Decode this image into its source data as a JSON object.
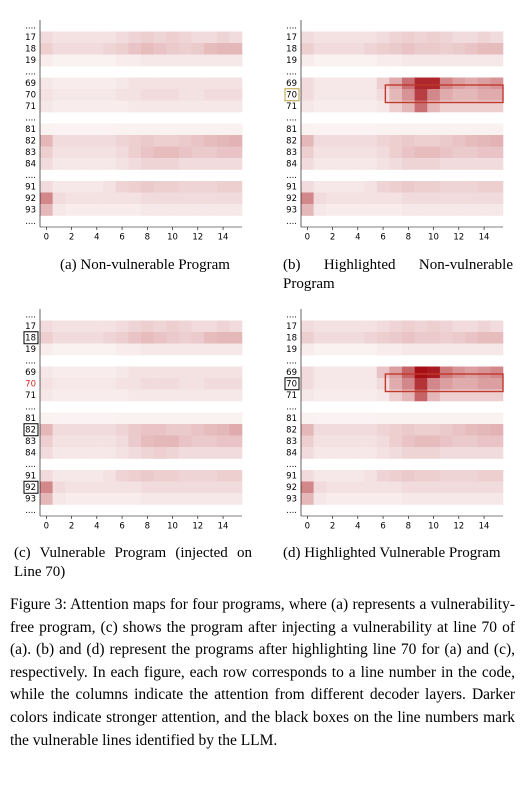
{
  "row_labels": [
    "....",
    "17",
    "18",
    "19",
    "....",
    "69",
    "70",
    "71",
    "....",
    "81",
    "82",
    "83",
    "84",
    "....",
    "91",
    "92",
    "93",
    "...."
  ],
  "xticks": [
    0,
    2,
    4,
    6,
    8,
    10,
    12,
    14
  ],
  "vmin": 0,
  "vmax": 1,
  "color_low": "#ffffff",
  "color_high": "#a50f15",
  "figures": [
    {
      "caption": "(a) Non-vulnerable Program",
      "boxed_labels": [],
      "label_box_color": "#000000",
      "red_labels": [],
      "highlight": null,
      "values": [
        null,
        [
          0.15,
          0.12,
          0.12,
          0.12,
          0.12,
          0.12,
          0.15,
          0.18,
          0.2,
          0.18,
          0.2,
          0.18,
          0.15,
          0.15,
          0.18,
          0.15
        ],
        [
          0.2,
          0.15,
          0.15,
          0.15,
          0.15,
          0.18,
          0.2,
          0.25,
          0.28,
          0.25,
          0.22,
          0.2,
          0.22,
          0.28,
          0.3,
          0.3
        ],
        [
          0.08,
          0.06,
          0.06,
          0.06,
          0.06,
          0.06,
          0.08,
          0.08,
          0.1,
          0.1,
          0.1,
          0.1,
          0.1,
          0.1,
          0.1,
          0.1
        ],
        null,
        [
          0.1,
          0.08,
          0.08,
          0.08,
          0.08,
          0.08,
          0.1,
          0.12,
          0.12,
          0.12,
          0.12,
          0.12,
          0.12,
          0.12,
          0.12,
          0.12
        ],
        [
          0.12,
          0.1,
          0.1,
          0.1,
          0.1,
          0.1,
          0.12,
          0.12,
          0.15,
          0.15,
          0.15,
          0.12,
          0.12,
          0.15,
          0.15,
          0.15
        ],
        [
          0.1,
          0.08,
          0.08,
          0.08,
          0.08,
          0.08,
          0.08,
          0.1,
          0.1,
          0.1,
          0.1,
          0.1,
          0.1,
          0.1,
          0.1,
          0.1
        ],
        null,
        [
          0.06,
          0.05,
          0.05,
          0.05,
          0.05,
          0.05,
          0.06,
          0.06,
          0.06,
          0.06,
          0.06,
          0.06,
          0.06,
          0.06,
          0.06,
          0.06
        ],
        [
          0.3,
          0.15,
          0.15,
          0.15,
          0.15,
          0.15,
          0.18,
          0.2,
          0.22,
          0.2,
          0.2,
          0.22,
          0.25,
          0.28,
          0.3,
          0.32
        ],
        [
          0.2,
          0.12,
          0.12,
          0.12,
          0.12,
          0.12,
          0.15,
          0.2,
          0.25,
          0.28,
          0.28,
          0.25,
          0.22,
          0.22,
          0.25,
          0.25
        ],
        [
          0.15,
          0.1,
          0.1,
          0.1,
          0.1,
          0.1,
          0.12,
          0.15,
          0.18,
          0.18,
          0.18,
          0.15,
          0.15,
          0.15,
          0.15,
          0.15
        ],
        null,
        [
          0.15,
          0.1,
          0.1,
          0.1,
          0.1,
          0.12,
          0.18,
          0.2,
          0.22,
          0.2,
          0.2,
          0.18,
          0.18,
          0.18,
          0.2,
          0.2
        ],
        [
          0.5,
          0.15,
          0.12,
          0.12,
          0.12,
          0.12,
          0.12,
          0.12,
          0.15,
          0.15,
          0.15,
          0.15,
          0.15,
          0.15,
          0.15,
          0.15
        ],
        [
          0.3,
          0.1,
          0.08,
          0.08,
          0.08,
          0.08,
          0.08,
          0.08,
          0.1,
          0.1,
          0.1,
          0.1,
          0.1,
          0.1,
          0.1,
          0.1
        ],
        null
      ]
    },
    {
      "caption": "(b) Highlighted Non-vulnerable Program",
      "boxed_labels": [
        6
      ],
      "label_box_color": "#b8a040",
      "red_labels": [],
      "highlight": {
        "row": 6,
        "from": 7,
        "to": 15,
        "color": "#c0392b"
      },
      "values": [
        null,
        [
          0.15,
          0.12,
          0.12,
          0.12,
          0.12,
          0.12,
          0.15,
          0.18,
          0.2,
          0.18,
          0.2,
          0.18,
          0.15,
          0.15,
          0.18,
          0.15
        ],
        [
          0.2,
          0.15,
          0.15,
          0.15,
          0.15,
          0.18,
          0.2,
          0.22,
          0.25,
          0.22,
          0.22,
          0.2,
          0.22,
          0.25,
          0.28,
          0.28
        ],
        [
          0.08,
          0.06,
          0.06,
          0.06,
          0.06,
          0.06,
          0.08,
          0.08,
          0.1,
          0.1,
          0.1,
          0.1,
          0.1,
          0.1,
          0.1,
          0.1
        ],
        null,
        [
          0.15,
          0.1,
          0.1,
          0.1,
          0.1,
          0.1,
          0.2,
          0.35,
          0.6,
          0.9,
          0.9,
          0.5,
          0.4,
          0.35,
          0.4,
          0.45
        ],
        [
          0.15,
          0.1,
          0.1,
          0.1,
          0.1,
          0.1,
          0.15,
          0.3,
          0.45,
          0.8,
          0.5,
          0.35,
          0.3,
          0.3,
          0.35,
          0.35
        ],
        [
          0.1,
          0.08,
          0.08,
          0.08,
          0.08,
          0.08,
          0.1,
          0.2,
          0.3,
          0.6,
          0.3,
          0.2,
          0.2,
          0.2,
          0.2,
          0.2
        ],
        null,
        [
          0.06,
          0.05,
          0.05,
          0.05,
          0.05,
          0.05,
          0.06,
          0.06,
          0.06,
          0.06,
          0.06,
          0.06,
          0.06,
          0.06,
          0.06,
          0.06
        ],
        [
          0.3,
          0.15,
          0.15,
          0.15,
          0.15,
          0.15,
          0.18,
          0.2,
          0.22,
          0.2,
          0.2,
          0.22,
          0.25,
          0.28,
          0.3,
          0.32
        ],
        [
          0.2,
          0.12,
          0.12,
          0.12,
          0.12,
          0.12,
          0.15,
          0.2,
          0.25,
          0.28,
          0.28,
          0.25,
          0.22,
          0.22,
          0.25,
          0.25
        ],
        [
          0.15,
          0.1,
          0.1,
          0.1,
          0.1,
          0.1,
          0.12,
          0.15,
          0.18,
          0.18,
          0.18,
          0.15,
          0.15,
          0.15,
          0.15,
          0.15
        ],
        null,
        [
          0.15,
          0.1,
          0.1,
          0.1,
          0.1,
          0.12,
          0.18,
          0.2,
          0.22,
          0.2,
          0.2,
          0.18,
          0.18,
          0.18,
          0.2,
          0.2
        ],
        [
          0.5,
          0.15,
          0.12,
          0.12,
          0.12,
          0.12,
          0.12,
          0.12,
          0.15,
          0.15,
          0.15,
          0.15,
          0.15,
          0.15,
          0.15,
          0.15
        ],
        [
          0.3,
          0.1,
          0.08,
          0.08,
          0.08,
          0.08,
          0.08,
          0.08,
          0.1,
          0.1,
          0.1,
          0.1,
          0.1,
          0.1,
          0.1,
          0.1
        ],
        null
      ]
    },
    {
      "caption": "(c) Vulnerable Program (injected on Line 70)",
      "boxed_labels": [
        2,
        10,
        15
      ],
      "label_box_color": "#000000",
      "red_labels": [
        6
      ],
      "highlight": null,
      "values": [
        null,
        [
          0.15,
          0.12,
          0.12,
          0.12,
          0.12,
          0.12,
          0.15,
          0.18,
          0.2,
          0.18,
          0.2,
          0.18,
          0.15,
          0.15,
          0.18,
          0.15
        ],
        [
          0.2,
          0.15,
          0.15,
          0.15,
          0.15,
          0.18,
          0.2,
          0.25,
          0.28,
          0.25,
          0.22,
          0.2,
          0.22,
          0.28,
          0.3,
          0.3
        ],
        [
          0.08,
          0.06,
          0.06,
          0.06,
          0.06,
          0.06,
          0.08,
          0.08,
          0.1,
          0.1,
          0.1,
          0.1,
          0.1,
          0.1,
          0.1,
          0.1
        ],
        null,
        [
          0.1,
          0.08,
          0.08,
          0.08,
          0.08,
          0.08,
          0.1,
          0.12,
          0.12,
          0.12,
          0.12,
          0.12,
          0.12,
          0.12,
          0.12,
          0.12
        ],
        [
          0.12,
          0.1,
          0.1,
          0.1,
          0.1,
          0.1,
          0.12,
          0.12,
          0.15,
          0.15,
          0.15,
          0.12,
          0.12,
          0.15,
          0.15,
          0.15
        ],
        [
          0.1,
          0.08,
          0.08,
          0.08,
          0.08,
          0.08,
          0.08,
          0.1,
          0.1,
          0.1,
          0.1,
          0.1,
          0.1,
          0.1,
          0.1,
          0.1
        ],
        null,
        [
          0.06,
          0.05,
          0.05,
          0.05,
          0.05,
          0.05,
          0.06,
          0.06,
          0.06,
          0.06,
          0.06,
          0.06,
          0.06,
          0.06,
          0.06,
          0.06
        ],
        [
          0.3,
          0.15,
          0.15,
          0.15,
          0.15,
          0.15,
          0.18,
          0.22,
          0.25,
          0.25,
          0.22,
          0.22,
          0.25,
          0.28,
          0.3,
          0.35
        ],
        [
          0.2,
          0.12,
          0.12,
          0.12,
          0.12,
          0.12,
          0.15,
          0.22,
          0.28,
          0.3,
          0.3,
          0.25,
          0.22,
          0.22,
          0.25,
          0.25
        ],
        [
          0.15,
          0.1,
          0.1,
          0.1,
          0.1,
          0.1,
          0.12,
          0.15,
          0.18,
          0.2,
          0.18,
          0.15,
          0.15,
          0.15,
          0.15,
          0.15
        ],
        null,
        [
          0.15,
          0.1,
          0.1,
          0.1,
          0.1,
          0.12,
          0.18,
          0.2,
          0.22,
          0.2,
          0.2,
          0.18,
          0.18,
          0.18,
          0.2,
          0.2
        ],
        [
          0.5,
          0.15,
          0.12,
          0.12,
          0.12,
          0.12,
          0.12,
          0.12,
          0.15,
          0.15,
          0.15,
          0.15,
          0.15,
          0.15,
          0.15,
          0.15
        ],
        [
          0.3,
          0.1,
          0.08,
          0.08,
          0.08,
          0.08,
          0.08,
          0.08,
          0.1,
          0.1,
          0.1,
          0.1,
          0.1,
          0.1,
          0.1,
          0.1
        ],
        null
      ]
    },
    {
      "caption": "(d) Highlighted Vulnerable Program",
      "boxed_labels": [
        6
      ],
      "label_box_color": "#000000",
      "red_labels": [],
      "highlight": {
        "row": 6,
        "from": 7,
        "to": 15,
        "color": "#c0392b"
      },
      "values": [
        null,
        [
          0.15,
          0.12,
          0.12,
          0.12,
          0.12,
          0.12,
          0.15,
          0.18,
          0.2,
          0.18,
          0.2,
          0.18,
          0.15,
          0.15,
          0.18,
          0.15
        ],
        [
          0.2,
          0.15,
          0.15,
          0.15,
          0.15,
          0.18,
          0.2,
          0.22,
          0.25,
          0.22,
          0.22,
          0.2,
          0.22,
          0.25,
          0.28,
          0.28
        ],
        [
          0.08,
          0.06,
          0.06,
          0.06,
          0.06,
          0.06,
          0.08,
          0.08,
          0.1,
          0.1,
          0.1,
          0.1,
          0.1,
          0.1,
          0.1,
          0.1
        ],
        null,
        [
          0.15,
          0.1,
          0.1,
          0.1,
          0.1,
          0.1,
          0.25,
          0.4,
          0.65,
          1.0,
          0.95,
          0.55,
          0.45,
          0.4,
          0.45,
          0.5
        ],
        [
          0.15,
          0.1,
          0.1,
          0.1,
          0.1,
          0.1,
          0.15,
          0.35,
          0.5,
          0.85,
          0.5,
          0.4,
          0.35,
          0.35,
          0.4,
          0.4
        ],
        [
          0.1,
          0.08,
          0.08,
          0.08,
          0.08,
          0.08,
          0.1,
          0.2,
          0.3,
          0.65,
          0.3,
          0.2,
          0.2,
          0.2,
          0.2,
          0.2
        ],
        null,
        [
          0.06,
          0.05,
          0.05,
          0.05,
          0.05,
          0.05,
          0.06,
          0.06,
          0.06,
          0.06,
          0.06,
          0.06,
          0.06,
          0.06,
          0.06,
          0.06
        ],
        [
          0.3,
          0.15,
          0.15,
          0.15,
          0.15,
          0.15,
          0.18,
          0.2,
          0.22,
          0.2,
          0.2,
          0.22,
          0.25,
          0.28,
          0.3,
          0.32
        ],
        [
          0.2,
          0.12,
          0.12,
          0.12,
          0.12,
          0.12,
          0.15,
          0.2,
          0.25,
          0.28,
          0.28,
          0.25,
          0.22,
          0.22,
          0.25,
          0.25
        ],
        [
          0.15,
          0.1,
          0.1,
          0.1,
          0.1,
          0.1,
          0.12,
          0.15,
          0.18,
          0.18,
          0.18,
          0.15,
          0.15,
          0.15,
          0.15,
          0.15
        ],
        null,
        [
          0.15,
          0.1,
          0.1,
          0.1,
          0.1,
          0.12,
          0.18,
          0.2,
          0.22,
          0.2,
          0.2,
          0.18,
          0.18,
          0.18,
          0.2,
          0.2
        ],
        [
          0.5,
          0.15,
          0.12,
          0.12,
          0.12,
          0.12,
          0.12,
          0.12,
          0.15,
          0.15,
          0.15,
          0.15,
          0.15,
          0.15,
          0.15,
          0.15
        ],
        [
          0.3,
          0.1,
          0.08,
          0.08,
          0.08,
          0.08,
          0.08,
          0.08,
          0.1,
          0.1,
          0.1,
          0.1,
          0.1,
          0.1,
          0.1,
          0.1
        ],
        null
      ]
    }
  ],
  "figure_caption": "Figure 3: Attention maps for four programs, where (a) represents a vulnerability-free program, (c) shows the program after injecting a vulnerability at line 70 of (a). (b) and (d) represent the programs after highlighting line 70 for (a) and (c), respectively. In each figure, each row corresponds to a line number in the code, while the columns indicate the attention from different decoder layers. Darker colors indicate stronger attention, and the black boxes on the line numbers mark the vulnerable lines identified by the LLM."
}
